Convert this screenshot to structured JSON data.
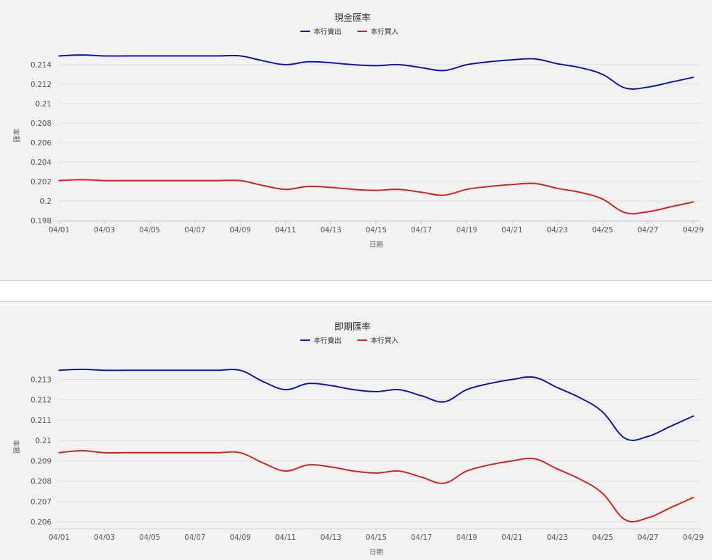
{
  "chart_data": [
    {
      "type": "line",
      "title": "現金匯率",
      "xlabel": "日期",
      "ylabel": "匯率",
      "x": [
        "04/01",
        "04/02",
        "04/03",
        "04/04",
        "04/05",
        "04/06",
        "04/07",
        "04/08",
        "04/09",
        "04/10",
        "04/11",
        "04/12",
        "04/13",
        "04/14",
        "04/15",
        "04/16",
        "04/17",
        "04/18",
        "04/19",
        "04/20",
        "04/21",
        "04/22",
        "04/23",
        "04/24",
        "04/25",
        "04/26",
        "04/27",
        "04/28",
        "04/29"
      ],
      "x_tick_labels": [
        "04/01",
        "04/03",
        "04/05",
        "04/07",
        "04/09",
        "04/11",
        "04/13",
        "04/15",
        "04/17",
        "04/19",
        "04/21",
        "04/23",
        "04/25",
        "04/27",
        "04/29"
      ],
      "y_ticks": [
        0.198,
        0.2,
        0.202,
        0.204,
        0.206,
        0.208,
        0.21,
        0.212,
        0.214
      ],
      "y_tick_labels": [
        "0.198",
        "0.2",
        "0.202",
        "0.204",
        "0.206",
        "0.208",
        "0.21",
        "0.212",
        "0.214"
      ],
      "ylim": [
        0.198,
        0.2155
      ],
      "grid": true,
      "legend": "top-center",
      "series": [
        {
          "name": "本行賣出",
          "color": "#1111aa",
          "values": [
            0.2149,
            0.215,
            0.2149,
            0.2149,
            0.2149,
            0.2149,
            0.2149,
            0.2149,
            0.2149,
            0.2144,
            0.214,
            0.2143,
            0.2142,
            0.214,
            0.2139,
            0.214,
            0.2137,
            0.2134,
            0.214,
            0.2143,
            0.2145,
            0.2146,
            0.2141,
            0.2137,
            0.213,
            0.2116,
            0.2117,
            0.2122,
            0.2127
          ]
        },
        {
          "name": "本行買入",
          "color": "#d42020",
          "values": [
            0.2021,
            0.2022,
            0.2021,
            0.2021,
            0.2021,
            0.2021,
            0.2021,
            0.2021,
            0.2021,
            0.2016,
            0.2012,
            0.2015,
            0.2014,
            0.2012,
            0.2011,
            0.2012,
            0.2009,
            0.2006,
            0.2012,
            0.2015,
            0.2017,
            0.2018,
            0.2013,
            0.2009,
            0.2002,
            0.1988,
            0.1989,
            0.1994,
            0.1999
          ]
        }
      ]
    },
    {
      "type": "line",
      "title": "即期匯率",
      "xlabel": "日期",
      "ylabel": "匯率",
      "x": [
        "04/01",
        "04/02",
        "04/03",
        "04/04",
        "04/05",
        "04/06",
        "04/07",
        "04/08",
        "04/09",
        "04/10",
        "04/11",
        "04/12",
        "04/13",
        "04/14",
        "04/15",
        "04/16",
        "04/17",
        "04/18",
        "04/19",
        "04/20",
        "04/21",
        "04/22",
        "04/23",
        "04/24",
        "04/25",
        "04/26",
        "04/27",
        "04/28",
        "04/29"
      ],
      "x_tick_labels": [
        "04/01",
        "04/03",
        "04/05",
        "04/07",
        "04/09",
        "04/11",
        "04/13",
        "04/15",
        "04/17",
        "04/19",
        "04/21",
        "04/23",
        "04/25",
        "04/27",
        "04/29"
      ],
      "y_ticks": [
        0.206,
        0.207,
        0.208,
        0.209,
        0.21,
        0.211,
        0.212,
        0.213
      ],
      "y_tick_labels": [
        "0.206",
        "0.207",
        "0.208",
        "0.209",
        "0.21",
        "0.211",
        "0.212",
        "0.213"
      ],
      "ylim": [
        0.2057,
        0.2137
      ],
      "grid": true,
      "legend": "top-center",
      "series": [
        {
          "name": "本行賣出",
          "color": "#1111aa",
          "values": [
            0.21345,
            0.2135,
            0.21345,
            0.21345,
            0.21345,
            0.21345,
            0.21345,
            0.21345,
            0.21345,
            0.2129,
            0.2125,
            0.2128,
            0.2127,
            0.2125,
            0.2124,
            0.2125,
            0.2122,
            0.2119,
            0.2125,
            0.2128,
            0.213,
            0.2131,
            0.2126,
            0.2121,
            0.2114,
            0.2101,
            0.2102,
            0.2107,
            0.2112
          ]
        },
        {
          "name": "本行買入",
          "color": "#d42020",
          "values": [
            0.2094,
            0.2095,
            0.2094,
            0.2094,
            0.2094,
            0.2094,
            0.2094,
            0.2094,
            0.2094,
            0.2089,
            0.2085,
            0.2088,
            0.2087,
            0.2085,
            0.2084,
            0.2085,
            0.2082,
            0.2079,
            0.2085,
            0.2088,
            0.209,
            0.2091,
            0.2086,
            0.2081,
            0.2074,
            0.2061,
            0.2062,
            0.2067,
            0.2072
          ]
        }
      ]
    }
  ]
}
